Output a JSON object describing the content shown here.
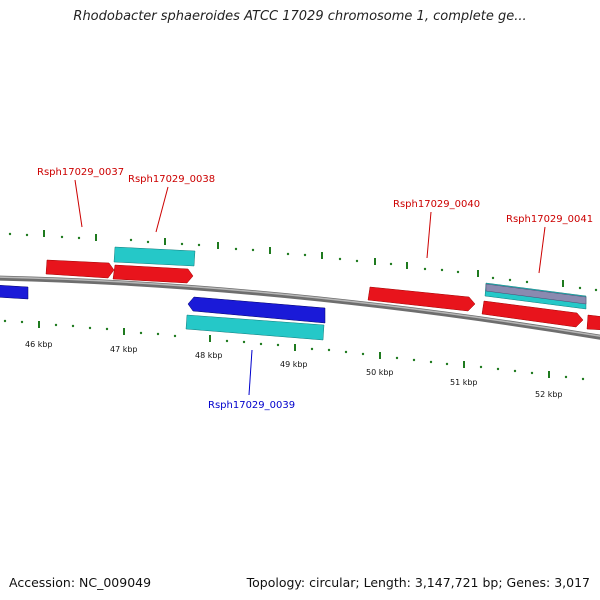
{
  "header": {
    "title": "Rhodobacter sphaeroides ATCC 17029 chromosome 1, complete ge..."
  },
  "footer": {
    "accession": "Accession: NC_009049",
    "summary": "Topology: circular; Length: 3,147,721 bp; Genes: 3,017"
  },
  "scale": {
    "ticks": [
      {
        "label": "46 kbp"
      },
      {
        "label": "47 kbp"
      },
      {
        "label": "48 kbp"
      },
      {
        "label": "49 kbp"
      },
      {
        "label": "50 kbp"
      },
      {
        "label": "51 kbp"
      },
      {
        "label": "52 kbp"
      }
    ]
  },
  "genes": {
    "labels": [
      {
        "text": "Rsph17029_0037",
        "strand": "forward"
      },
      {
        "text": "Rsph17029_0038",
        "strand": "forward"
      },
      {
        "text": "Rsph17029_0039",
        "strand": "reverse"
      },
      {
        "text": "Rsph17029_0040",
        "strand": "forward"
      },
      {
        "text": "Rsph17029_0041",
        "strand": "forward"
      }
    ]
  },
  "colors": {
    "forward_gene": "#e8141c",
    "reverse_gene": "#1a1ad8",
    "cds_feature": "#25c8c8",
    "misc_feature": "#8a8ab0",
    "backbone": "#8c8c8c",
    "tick": "#1f7a1f",
    "forward_label": "#cc0000",
    "reverse_label": "#0000cc"
  }
}
